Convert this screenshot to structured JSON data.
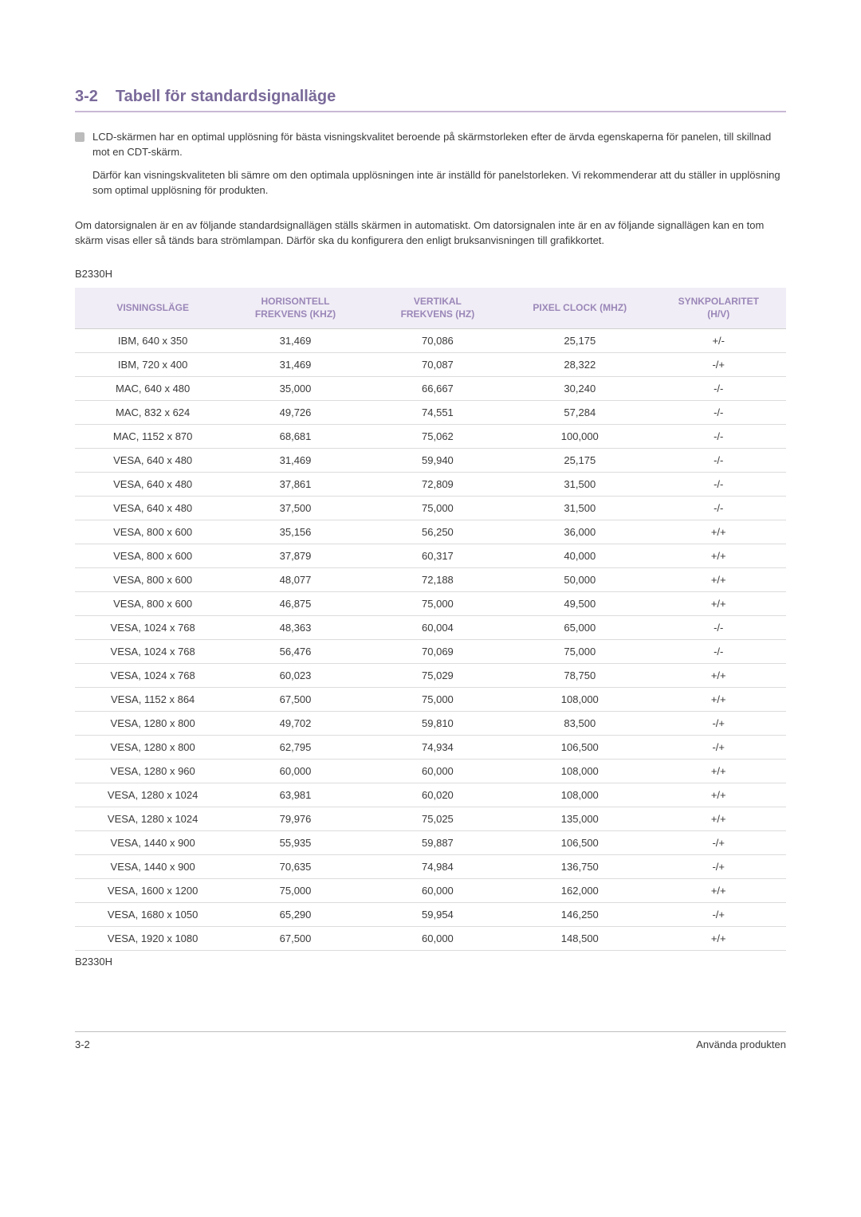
{
  "heading": {
    "number": "3-2",
    "title": "Tabell för standardsignalläge"
  },
  "note": {
    "p1": "LCD-skärmen har en optimal upplösning för bästa visningskvalitet beroende på skärmstorleken efter de ärvda egenskaperna för panelen, till skillnad mot en CDT-skärm.",
    "p2": "Därför kan visningskvaliteten bli sämre om den optimala upplösningen inte är inställd för panelstorleken. Vi rekommenderar att du ställer in upplösning som optimal upplösning för produkten."
  },
  "paragraph": "Om datorsignalen är en av följande standardsignallägen ställs skärmen in automatiskt. Om datorsignalen inte är en av följande signallägen kan en tom skärm visas eller så tänds bara strömlampan. Därför ska du konfigurera den enligt bruksanvisningen till grafikkortet.",
  "model_top": "B2330H",
  "model_bottom": "B2330H",
  "table": {
    "headers": {
      "col1": "VISNINGSLÄGE",
      "col2_line1": "HORISONTELL",
      "col2_line2": "FREKVENS (KHZ)",
      "col3_line1": "VERTIKAL",
      "col3_line2": "FREKVENS (HZ)",
      "col4": "PIXEL CLOCK (MHZ)",
      "col5_line1": "SYNKPOLARITET",
      "col5_line2": "(H/V)"
    },
    "col_widths": [
      "21%",
      "20%",
      "20%",
      "20%",
      "19%"
    ],
    "header_bg": "#f1edf6",
    "header_color": "#9a87b8",
    "border_color": "#dcdcdc",
    "rows": [
      [
        "IBM, 640 x 350",
        "31,469",
        "70,086",
        "25,175",
        "+/-"
      ],
      [
        "IBM, 720 x 400",
        "31,469",
        "70,087",
        "28,322",
        "-/+"
      ],
      [
        "MAC, 640 x 480",
        "35,000",
        "66,667",
        "30,240",
        "-/-"
      ],
      [
        "MAC, 832 x 624",
        "49,726",
        "74,551",
        "57,284",
        "-/-"
      ],
      [
        "MAC, 1152 x 870",
        "68,681",
        "75,062",
        "100,000",
        "-/-"
      ],
      [
        "VESA, 640 x 480",
        "31,469",
        "59,940",
        "25,175",
        "-/-"
      ],
      [
        "VESA, 640 x 480",
        "37,861",
        "72,809",
        "31,500",
        "-/-"
      ],
      [
        "VESA, 640 x 480",
        "37,500",
        "75,000",
        "31,500",
        "-/-"
      ],
      [
        "VESA, 800 x 600",
        "35,156",
        "56,250",
        "36,000",
        "+/+"
      ],
      [
        "VESA, 800 x 600",
        "37,879",
        "60,317",
        "40,000",
        "+/+"
      ],
      [
        "VESA, 800 x 600",
        "48,077",
        "72,188",
        "50,000",
        "+/+"
      ],
      [
        "VESA, 800 x 600",
        "46,875",
        "75,000",
        "49,500",
        "+/+"
      ],
      [
        "VESA, 1024 x 768",
        "48,363",
        "60,004",
        "65,000",
        "-/-"
      ],
      [
        "VESA, 1024 x 768",
        "56,476",
        "70,069",
        "75,000",
        "-/-"
      ],
      [
        "VESA, 1024 x 768",
        "60,023",
        "75,029",
        "78,750",
        "+/+"
      ],
      [
        "VESA, 1152 x 864",
        "67,500",
        "75,000",
        "108,000",
        "+/+"
      ],
      [
        "VESA, 1280 x 800",
        "49,702",
        "59,810",
        "83,500",
        "-/+"
      ],
      [
        "VESA, 1280 x 800",
        "62,795",
        "74,934",
        "106,500",
        "-/+"
      ],
      [
        "VESA, 1280 x 960",
        "60,000",
        "60,000",
        "108,000",
        "+/+"
      ],
      [
        "VESA, 1280 x 1024",
        "63,981",
        "60,020",
        "108,000",
        "+/+"
      ],
      [
        "VESA, 1280 x 1024",
        "79,976",
        "75,025",
        "135,000",
        "+/+"
      ],
      [
        "VESA, 1440 x 900",
        "55,935",
        "59,887",
        "106,500",
        "-/+"
      ],
      [
        "VESA, 1440 x 900",
        "70,635",
        "74,984",
        "136,750",
        "-/+"
      ],
      [
        "VESA, 1600 x 1200",
        "75,000",
        "60,000",
        "162,000",
        "+/+"
      ],
      [
        "VESA, 1680 x 1050",
        "65,290",
        "59,954",
        "146,250",
        "-/+"
      ],
      [
        "VESA, 1920 x 1080",
        "67,500",
        "60,000",
        "148,500",
        "+/+"
      ]
    ]
  },
  "footer": {
    "left": "3-2",
    "right": "Använda produkten"
  },
  "colors": {
    "heading_text": "#7a6a9a",
    "heading_rule": "#c9b8d6",
    "body_text": "#3a3a3a",
    "background": "#ffffff"
  }
}
